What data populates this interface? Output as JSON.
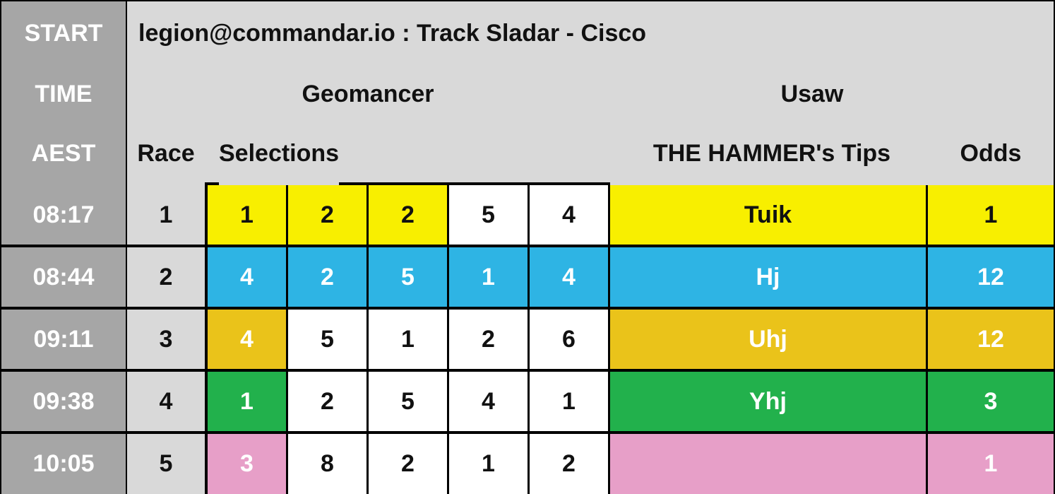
{
  "header": {
    "start_label": "START",
    "time_label": "TIME",
    "aest_label": "AEST",
    "title": "legion@commandar.io : Track Sladar - Cisco",
    "group_left": "Geomancer",
    "group_right": "Usaw",
    "race_col": "Race",
    "selections_col": "Selections",
    "tips_col": "THE HAMMER's Tips",
    "odds_col": "Odds"
  },
  "colors": {
    "yellow": "#f8ef00",
    "blue": "#2eb4e4",
    "gold": "#eac31a",
    "green": "#22b14c",
    "pink": "#e79fc8",
    "white": "#ffffff"
  },
  "rows": [
    {
      "time": "08:17",
      "race": "1",
      "selections": [
        "1",
        "2",
        "2",
        "5",
        "4"
      ],
      "tip": "Tuik",
      "odds": "1",
      "color": "yellow"
    },
    {
      "time": "08:44",
      "race": "2",
      "selections": [
        "4",
        "2",
        "5",
        "1",
        "4"
      ],
      "tip": "Hj",
      "odds": "12",
      "color": "blue"
    },
    {
      "time": "09:11",
      "race": "3",
      "selections": [
        "4",
        "5",
        "1",
        "2",
        "6"
      ],
      "tip": "Uhj",
      "odds": "12",
      "color": "gold"
    },
    {
      "time": "09:38",
      "race": "4",
      "selections": [
        "1",
        "2",
        "5",
        "4",
        "1"
      ],
      "tip": "Yhj",
      "odds": "3",
      "color": "green"
    },
    {
      "time": "10:05",
      "race": "5",
      "selections": [
        "3",
        "8",
        "2",
        "1",
        "2"
      ],
      "tip": "",
      "odds": "1",
      "color": "pink"
    }
  ],
  "highlighted_selections": [
    [
      true,
      true,
      true,
      false,
      false
    ],
    [
      true,
      true,
      true,
      true,
      true
    ],
    [
      true,
      false,
      false,
      false,
      false
    ],
    [
      true,
      false,
      false,
      false,
      false
    ],
    [
      true,
      false,
      false,
      false,
      false
    ]
  ]
}
